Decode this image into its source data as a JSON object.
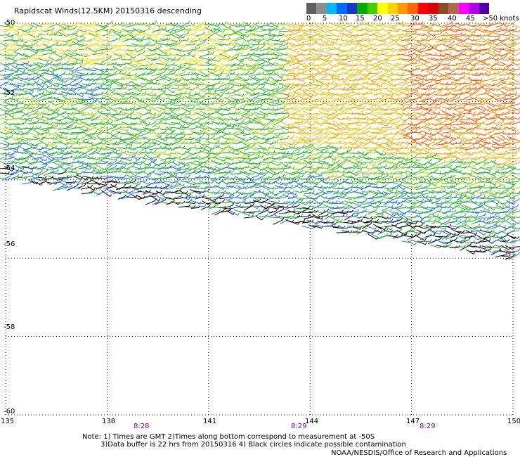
{
  "title": "Rapidscat Winds(12.5KM) 20150316 descending",
  "legend": {
    "labels": [
      "0",
      "5",
      "10",
      "15",
      "20",
      "25",
      "30",
      "35",
      "40",
      "45",
      ">50 knots"
    ],
    "colors": [
      "#606060",
      "#8e8e8e",
      "#00b8ff",
      "#0068ff",
      "#1838c8",
      "#00a800",
      "#40d000",
      "#ffff00",
      "#ffd000",
      "#ff9800",
      "#ff6800",
      "#ff0000",
      "#d80000",
      "#8c4a28",
      "#b06a48",
      "#ff00ff",
      "#b000e8",
      "#5000a8"
    ]
  },
  "chart_data": {
    "type": "wind-barb-map",
    "y_axis": {
      "labels": [
        "-50",
        "-52",
        "-54",
        "-56",
        "-58",
        "-60"
      ],
      "range": [
        -60,
        -50
      ]
    },
    "x_axis": {
      "labels": [
        "135",
        "138",
        "141",
        "144",
        "147",
        "150"
      ],
      "range": [
        135,
        150
      ]
    },
    "times": [
      "8:28",
      "8:29",
      "8:29"
    ],
    "grid": true,
    "colorbar": "knots"
  },
  "notes": {
    "line1": "Note: 1) Times are GMT 2)Times along bottom correspond to measurement at -50S",
    "line2": "3)Data buffer is 22 hrs from 20150316 4) Black circles indicate possible contamination"
  },
  "credit": "NOAA/NESDIS/Office of Research and Applications"
}
